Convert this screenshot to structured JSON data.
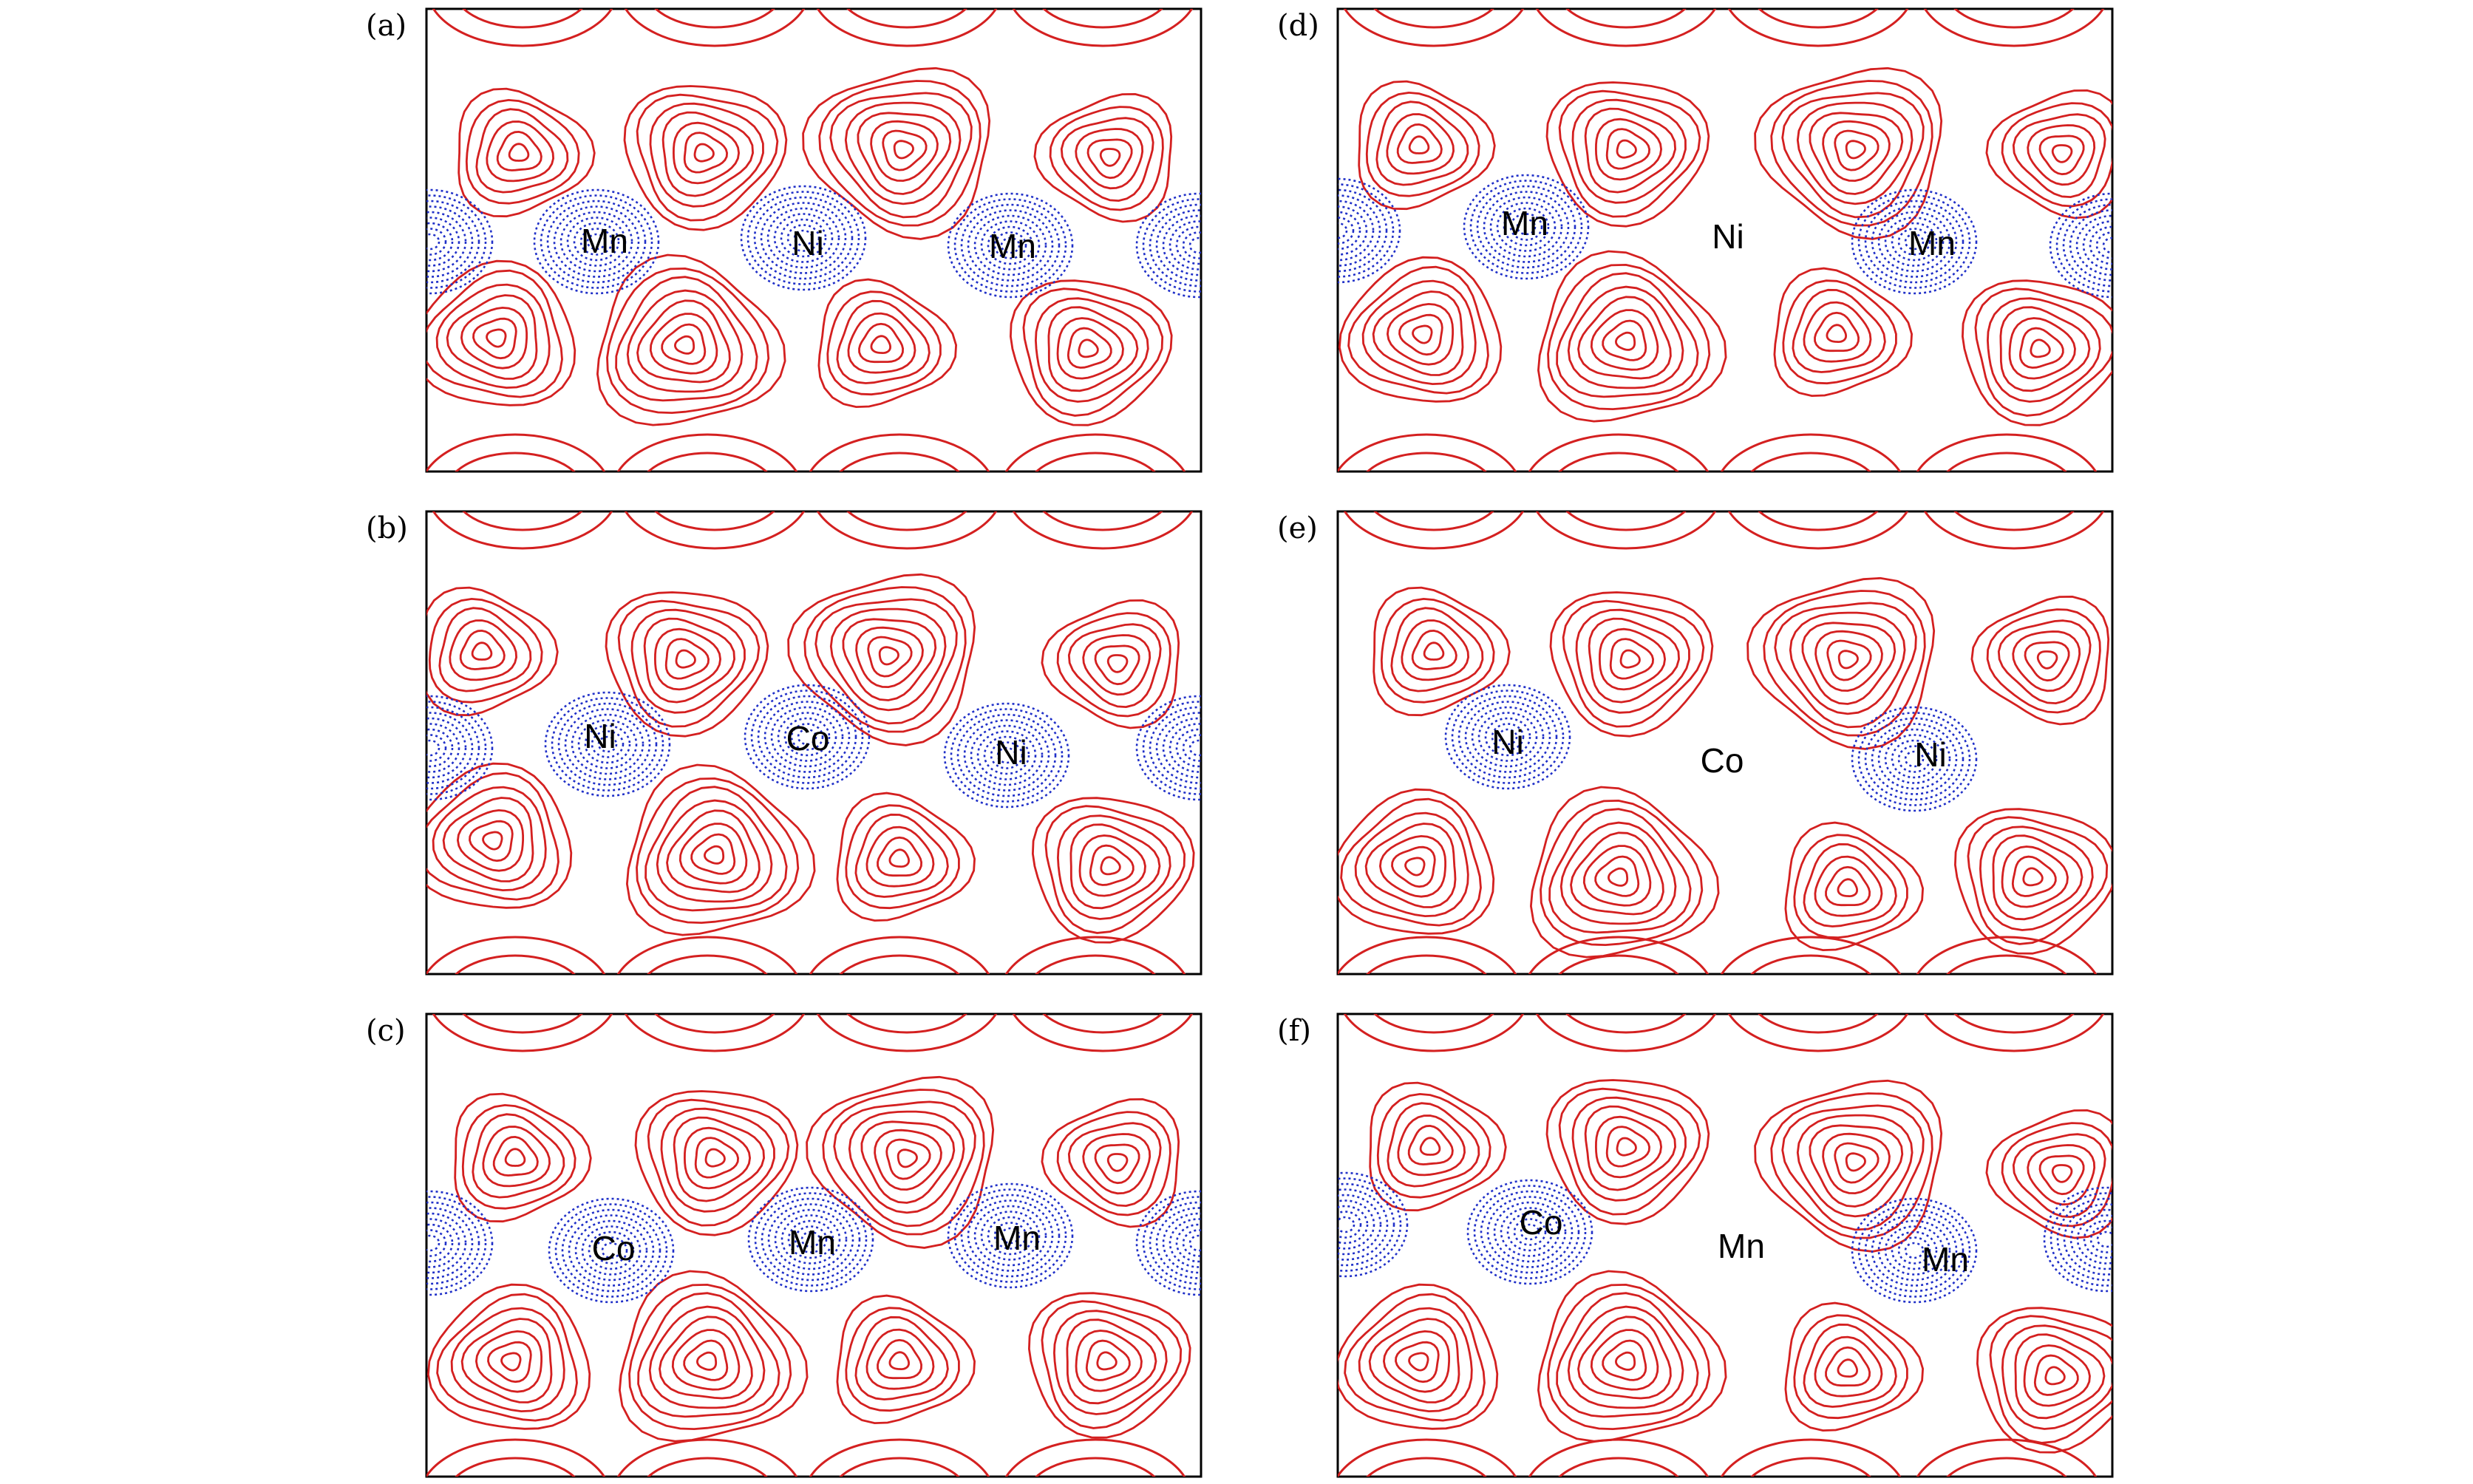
{
  "colors": {
    "positive_contour": "#d42020",
    "negative_contour": "#2030c8",
    "frame": "#000000",
    "background": "#ffffff"
  },
  "contour_style": {
    "positive": "solid",
    "negative": "dotted"
  },
  "panels": [
    {
      "id": "a",
      "label": "(a)",
      "atoms": [
        "Mn",
        "Ni",
        "Mn"
      ]
    },
    {
      "id": "b",
      "label": "(b)",
      "atoms": [
        "Ni",
        "Co",
        "Ni"
      ]
    },
    {
      "id": "c",
      "label": "(c)",
      "atoms": [
        "Co",
        "Mn",
        "Mn"
      ]
    },
    {
      "id": "d",
      "label": "(d)",
      "atoms": [
        "Mn",
        "Ni",
        "Mn"
      ]
    },
    {
      "id": "e",
      "label": "(e)",
      "atoms": [
        "Ni",
        "Co",
        "Ni"
      ]
    },
    {
      "id": "f",
      "label": "(f)",
      "atoms": [
        "Co",
        "Mn",
        "Mn"
      ]
    }
  ]
}
